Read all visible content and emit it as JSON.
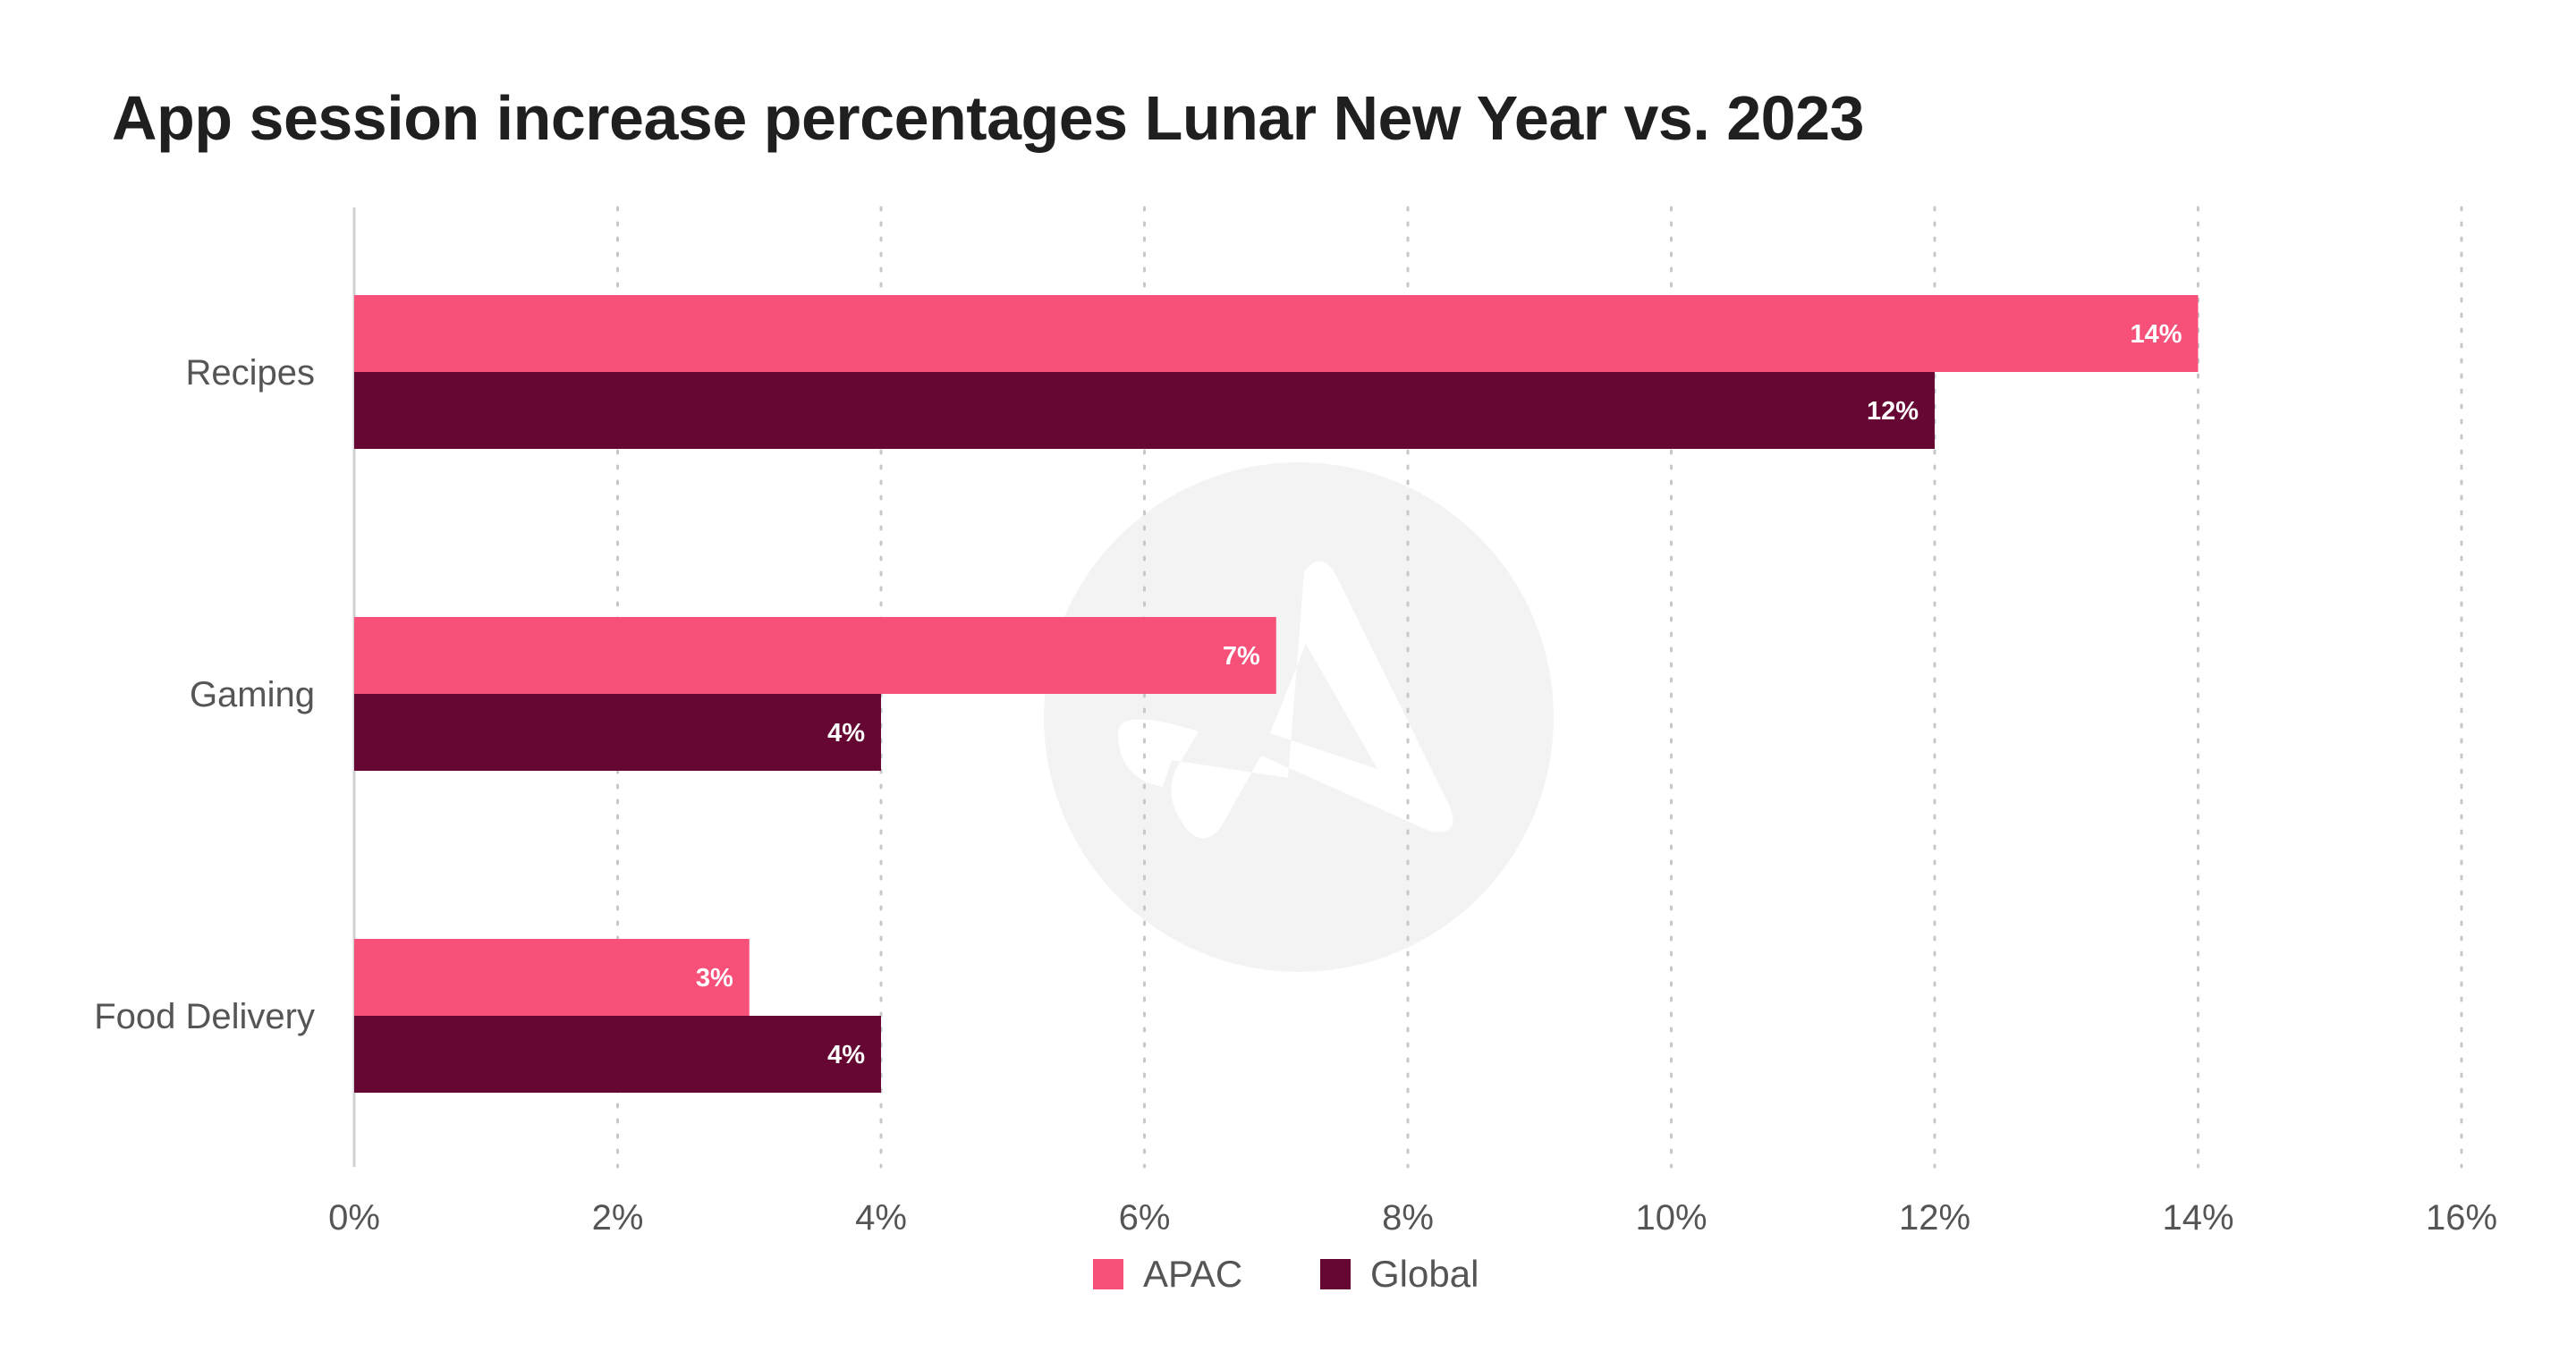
{
  "title": "App session increase percentages Lunar New Year vs. 2023",
  "colors": {
    "apac": "#f75079",
    "global": "#660633",
    "grid": "#c8c8c8",
    "axis": "#d0d0d0",
    "watermark": "#f3f3f3"
  },
  "watermark": {
    "icon": "logo-watermark-icon"
  },
  "chart_data": {
    "type": "bar",
    "orientation": "horizontal",
    "title": "App session increase percentages Lunar New Year vs. 2023",
    "xlabel": "",
    "ylabel": "",
    "categories": [
      "Recipes",
      "Gaming",
      "Food Delivery"
    ],
    "series": [
      {
        "name": "APAC",
        "values": [
          14,
          7,
          3
        ],
        "labels": [
          "14%",
          "7%",
          "3%"
        ]
      },
      {
        "name": "Global",
        "values": [
          12,
          4,
          4
        ],
        "labels": [
          "12%",
          "4%",
          "4%"
        ]
      }
    ],
    "xlim": [
      0,
      16
    ],
    "xticks": [
      0,
      2,
      4,
      6,
      8,
      10,
      12,
      14,
      16
    ],
    "xtick_labels": [
      "0%",
      "2%",
      "4%",
      "6%",
      "8%",
      "10%",
      "12%",
      "14%",
      "16%"
    ],
    "grid": true,
    "legend": "bottom-center"
  }
}
